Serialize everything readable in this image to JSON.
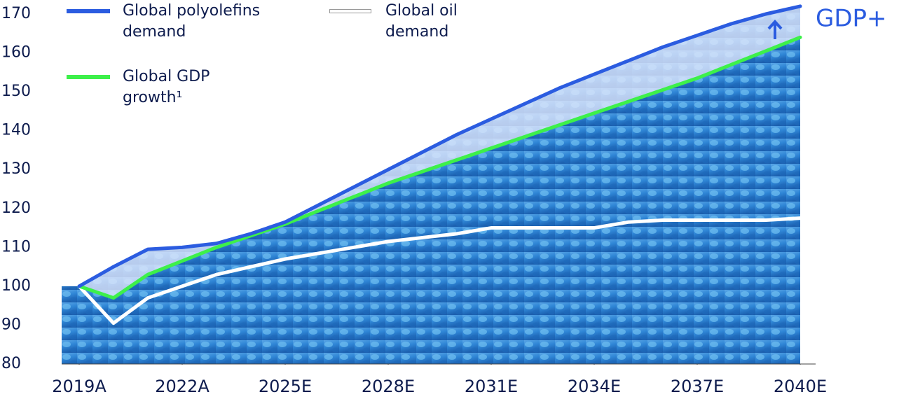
{
  "chart_data": {
    "type": "line",
    "x": [
      2019,
      2020,
      2021,
      2022,
      2023,
      2024,
      2025,
      2026,
      2027,
      2028,
      2029,
      2030,
      2031,
      2032,
      2033,
      2034,
      2035,
      2036,
      2037,
      2038,
      2039,
      2040
    ],
    "xlim": [
      2019,
      2040
    ],
    "xticks": [
      {
        "value": 2019,
        "label": "2019A"
      },
      {
        "value": 2022,
        "label": "2022A"
      },
      {
        "value": 2025,
        "label": "2025E"
      },
      {
        "value": 2028,
        "label": "2028E"
      },
      {
        "value": 2031,
        "label": "2031E"
      },
      {
        "value": 2034,
        "label": "2034E"
      },
      {
        "value": 2037,
        "label": "2037E"
      },
      {
        "value": 2040,
        "label": "2040E"
      }
    ],
    "ylim": [
      80,
      170
    ],
    "yticks": [
      80,
      90,
      100,
      110,
      120,
      130,
      140,
      150,
      160,
      170
    ],
    "series": [
      {
        "name": "Global polyolefins demand",
        "color": "#2b5ce0",
        "values": [
          100,
          105,
          109.5,
          110,
          111,
          113.5,
          116.5,
          121,
          125.5,
          130,
          134.5,
          139,
          143,
          147,
          151,
          154.5,
          158,
          161.5,
          164.5,
          167.5,
          170,
          172
        ]
      },
      {
        "name": "Global oil demand",
        "color": "#ffffff",
        "values": [
          100,
          90.5,
          97,
          100,
          103,
          105,
          107,
          108.5,
          110,
          111.5,
          112.5,
          113.5,
          115,
          115,
          115,
          115,
          116.5,
          117,
          117,
          117,
          117,
          117.5
        ]
      },
      {
        "name": "Global GDP growth¹",
        "color": "#3df04a",
        "values": [
          100,
          97,
          103,
          106.5,
          110,
          113,
          116,
          119.5,
          123,
          126.5,
          129.5,
          132.5,
          135.5,
          138.5,
          141.5,
          144.5,
          147.5,
          150.5,
          153.5,
          157,
          160.5,
          164
        ]
      }
    ],
    "annotation": "GDP+"
  }
}
